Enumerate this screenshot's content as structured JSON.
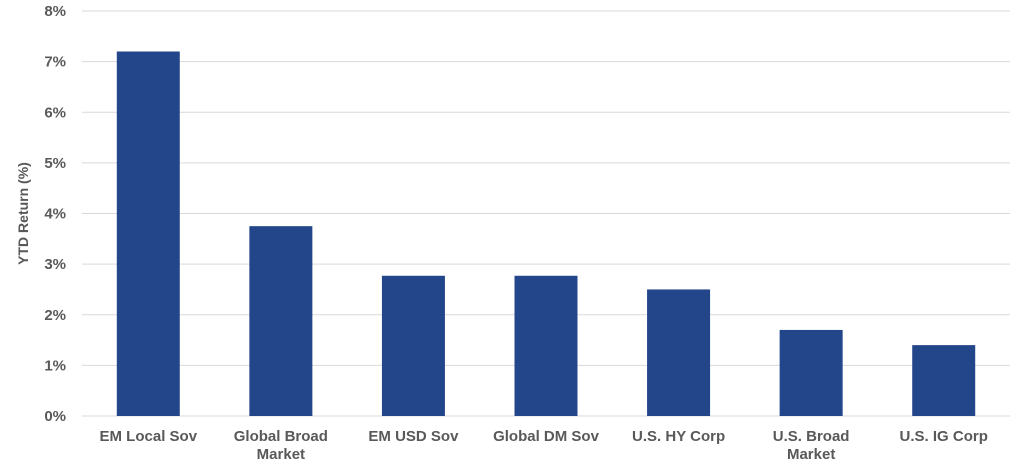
{
  "chart_data": {
    "type": "bar",
    "title": "",
    "xlabel": "",
    "ylabel": "YTD Return (%)",
    "ylim": [
      0,
      8
    ],
    "y_tick_step": 1,
    "y_tick_format": "percent",
    "grid": true,
    "legend": "none",
    "bar_color": "#23468A",
    "categories": [
      [
        "EM Local Sov"
      ],
      [
        "Global Broad",
        "Market"
      ],
      [
        "EM USD Sov"
      ],
      [
        "Global DM Sov"
      ],
      [
        "U.S. HY Corp"
      ],
      [
        "U.S. Broad",
        "Market"
      ],
      [
        "U.S. IG Corp"
      ]
    ],
    "values": [
      7.2,
      3.75,
      2.77,
      2.77,
      2.5,
      1.7,
      1.4
    ]
  }
}
